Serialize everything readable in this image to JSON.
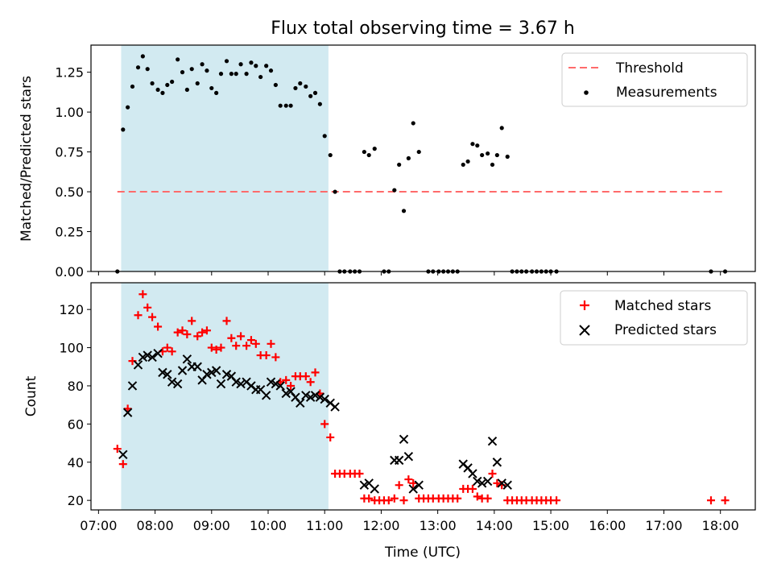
{
  "figure": {
    "title": "Flux total observing time = 3.67 h",
    "xlabel": "Time (UTC)",
    "x_ticks": [
      "07:00",
      "08:00",
      "09:00",
      "10:00",
      "11:00",
      "12:00",
      "13:00",
      "14:00",
      "15:00",
      "16:00",
      "17:00",
      "18:00"
    ]
  },
  "chart_data": [
    {
      "type": "scatter",
      "ylabel": "Matched/Predicted stars",
      "xlim": [
        "06:52",
        "18:37"
      ],
      "ylim": [
        0,
        1.42
      ],
      "y_ticks": [
        "0.00",
        "0.25",
        "0.50",
        "0.75",
        "1.00",
        "1.25"
      ],
      "legend_position": "top-right",
      "shaded_region": {
        "x": [
          "07:24",
          "11:04"
        ],
        "color": "#add8e6"
      },
      "threshold": {
        "name": "Threshold",
        "y": 0.5,
        "x": [
          "07:20",
          "18:05"
        ],
        "color": "#ff6b6b"
      },
      "series": [
        {
          "name": "Measurements",
          "color": "#000000",
          "points": [
            [
              "07:20",
              0.0
            ],
            [
              "07:26",
              0.89
            ],
            [
              "07:31",
              1.03
            ],
            [
              "07:36",
              1.16
            ],
            [
              "07:42",
              1.28
            ],
            [
              "07:47",
              1.35
            ],
            [
              "07:52",
              1.27
            ],
            [
              "07:57",
              1.18
            ],
            [
              "08:03",
              1.14
            ],
            [
              "08:08",
              1.12
            ],
            [
              "08:13",
              1.17
            ],
            [
              "08:18",
              1.19
            ],
            [
              "08:24",
              1.33
            ],
            [
              "08:29",
              1.25
            ],
            [
              "08:34",
              1.14
            ],
            [
              "08:39",
              1.27
            ],
            [
              "08:45",
              1.18
            ],
            [
              "08:50",
              1.3
            ],
            [
              "08:55",
              1.26
            ],
            [
              "09:00",
              1.15
            ],
            [
              "09:05",
              1.12
            ],
            [
              "09:10",
              1.24
            ],
            [
              "09:16",
              1.32
            ],
            [
              "09:21",
              1.24
            ],
            [
              "09:26",
              1.24
            ],
            [
              "09:31",
              1.3
            ],
            [
              "09:37",
              1.24
            ],
            [
              "09:42",
              1.31
            ],
            [
              "09:47",
              1.29
            ],
            [
              "09:52",
              1.22
            ],
            [
              "09:58",
              1.29
            ],
            [
              "10:03",
              1.26
            ],
            [
              "10:08",
              1.17
            ],
            [
              "10:13",
              1.04
            ],
            [
              "10:19",
              1.04
            ],
            [
              "10:24",
              1.04
            ],
            [
              "10:29",
              1.15
            ],
            [
              "10:34",
              1.18
            ],
            [
              "10:40",
              1.16
            ],
            [
              "10:45",
              1.1
            ],
            [
              "10:50",
              1.12
            ],
            [
              "10:55",
              1.05
            ],
            [
              "11:00",
              0.85
            ],
            [
              "11:06",
              0.73
            ],
            [
              "11:11",
              0.5
            ],
            [
              "11:16",
              0.0
            ],
            [
              "11:21",
              0.0
            ],
            [
              "11:27",
              0.0
            ],
            [
              "11:32",
              0.0
            ],
            [
              "11:37",
              0.0
            ],
            [
              "11:42",
              0.75
            ],
            [
              "11:47",
              0.73
            ],
            [
              "11:53",
              0.77
            ],
            [
              "12:03",
              0.0
            ],
            [
              "12:08",
              0.0
            ],
            [
              "12:14",
              0.51
            ],
            [
              "12:19",
              0.67
            ],
            [
              "12:24",
              0.38
            ],
            [
              "12:29",
              0.71
            ],
            [
              "12:34",
              0.93
            ],
            [
              "12:40",
              0.75
            ],
            [
              "12:50",
              0.0
            ],
            [
              "12:55",
              0.0
            ],
            [
              "13:01",
              0.0
            ],
            [
              "13:06",
              0.0
            ],
            [
              "13:11",
              0.0
            ],
            [
              "13:16",
              0.0
            ],
            [
              "13:21",
              0.0
            ],
            [
              "13:27",
              0.67
            ],
            [
              "13:32",
              0.69
            ],
            [
              "13:37",
              0.8
            ],
            [
              "13:42",
              0.79
            ],
            [
              "13:47",
              0.73
            ],
            [
              "13:53",
              0.74
            ],
            [
              "13:58",
              0.67
            ],
            [
              "14:03",
              0.73
            ],
            [
              "14:08",
              0.9
            ],
            [
              "14:14",
              0.72
            ],
            [
              "14:19",
              0.0
            ],
            [
              "14:24",
              0.0
            ],
            [
              "14:29",
              0.0
            ],
            [
              "14:34",
              0.0
            ],
            [
              "14:40",
              0.0
            ],
            [
              "14:45",
              0.0
            ],
            [
              "14:50",
              0.0
            ],
            [
              "14:55",
              0.0
            ],
            [
              "15:00",
              0.0
            ],
            [
              "15:06",
              0.0
            ],
            [
              "17:50",
              0.0
            ],
            [
              "18:05",
              0.0
            ]
          ]
        }
      ]
    },
    {
      "type": "scatter",
      "ylabel": "Count",
      "xlim": [
        "06:52",
        "18:37"
      ],
      "ylim": [
        15,
        134
      ],
      "y_ticks": [
        "20",
        "40",
        "60",
        "80",
        "100",
        "120"
      ],
      "legend_position": "top-right",
      "shaded_region": {
        "x": [
          "07:24",
          "11:04"
        ],
        "color": "#add8e6"
      },
      "series": [
        {
          "name": "Matched stars",
          "color": "#ff0000",
          "marker": "plus",
          "points": [
            [
              "07:20",
              47
            ],
            [
              "07:26",
              39
            ],
            [
              "07:31",
              68
            ],
            [
              "07:36",
              93
            ],
            [
              "07:42",
              117
            ],
            [
              "07:47",
              128
            ],
            [
              "07:52",
              121
            ],
            [
              "07:57",
              116
            ],
            [
              "08:03",
              111
            ],
            [
              "08:08",
              98
            ],
            [
              "08:13",
              100
            ],
            [
              "08:18",
              98
            ],
            [
              "08:24",
              108
            ],
            [
              "08:29",
              109
            ],
            [
              "08:34",
              107
            ],
            [
              "08:39",
              114
            ],
            [
              "08:45",
              106
            ],
            [
              "08:50",
              108
            ],
            [
              "08:55",
              109
            ],
            [
              "09:00",
              100
            ],
            [
              "09:05",
              99
            ],
            [
              "09:10",
              100
            ],
            [
              "09:16",
              114
            ],
            [
              "09:21",
              105
            ],
            [
              "09:26",
              101
            ],
            [
              "09:31",
              106
            ],
            [
              "09:37",
              101
            ],
            [
              "09:42",
              104
            ],
            [
              "09:47",
              102
            ],
            [
              "09:52",
              96
            ],
            [
              "09:58",
              96
            ],
            [
              "10:03",
              102
            ],
            [
              "10:08",
              95
            ],
            [
              "10:13",
              82
            ],
            [
              "10:19",
              83
            ],
            [
              "10:24",
              80
            ],
            [
              "10:29",
              85
            ],
            [
              "10:34",
              85
            ],
            [
              "10:40",
              85
            ],
            [
              "10:45",
              82
            ],
            [
              "10:50",
              87
            ],
            [
              "10:55",
              76
            ],
            [
              "11:00",
              60
            ],
            [
              "11:06",
              53
            ],
            [
              "11:11",
              34
            ],
            [
              "11:16",
              34
            ],
            [
              "11:21",
              34
            ],
            [
              "11:27",
              34
            ],
            [
              "11:32",
              34
            ],
            [
              "11:37",
              34
            ],
            [
              "11:42",
              21
            ],
            [
              "11:47",
              21
            ],
            [
              "11:53",
              20
            ],
            [
              "11:58",
              20
            ],
            [
              "12:03",
              20
            ],
            [
              "12:08",
              20
            ],
            [
              "12:14",
              21
            ],
            [
              "12:19",
              28
            ],
            [
              "12:24",
              20
            ],
            [
              "12:29",
              31
            ],
            [
              "12:34",
              29
            ],
            [
              "12:40",
              21
            ],
            [
              "12:45",
              21
            ],
            [
              "12:50",
              21
            ],
            [
              "12:55",
              21
            ],
            [
              "13:01",
              21
            ],
            [
              "13:06",
              21
            ],
            [
              "13:11",
              21
            ],
            [
              "13:16",
              21
            ],
            [
              "13:21",
              21
            ],
            [
              "13:27",
              26
            ],
            [
              "13:32",
              26
            ],
            [
              "13:37",
              26
            ],
            [
              "13:42",
              22
            ],
            [
              "13:47",
              21
            ],
            [
              "13:53",
              21
            ],
            [
              "13:58",
              34
            ],
            [
              "14:03",
              29
            ],
            [
              "14:08",
              28
            ],
            [
              "14:14",
              20
            ],
            [
              "14:19",
              20
            ],
            [
              "14:24",
              20
            ],
            [
              "14:29",
              20
            ],
            [
              "14:34",
              20
            ],
            [
              "14:40",
              20
            ],
            [
              "14:45",
              20
            ],
            [
              "14:50",
              20
            ],
            [
              "14:55",
              20
            ],
            [
              "15:00",
              20
            ],
            [
              "15:06",
              20
            ],
            [
              "17:50",
              20
            ],
            [
              "18:05",
              20
            ]
          ]
        },
        {
          "name": "Predicted stars",
          "color": "#000000",
          "marker": "x",
          "points": [
            [
              "07:26",
              44
            ],
            [
              "07:31",
              66
            ],
            [
              "07:36",
              80
            ],
            [
              "07:42",
              91
            ],
            [
              "07:47",
              95
            ],
            [
              "07:52",
              96
            ],
            [
              "07:57",
              95
            ],
            [
              "08:03",
              97
            ],
            [
              "08:08",
              87
            ],
            [
              "08:13",
              86
            ],
            [
              "08:18",
              82
            ],
            [
              "08:24",
              81
            ],
            [
              "08:29",
              88
            ],
            [
              "08:34",
              94
            ],
            [
              "08:39",
              90
            ],
            [
              "08:45",
              90
            ],
            [
              "08:50",
              83
            ],
            [
              "08:55",
              86
            ],
            [
              "09:00",
              87
            ],
            [
              "09:05",
              88
            ],
            [
              "09:10",
              81
            ],
            [
              "09:16",
              86
            ],
            [
              "09:21",
              85
            ],
            [
              "09:26",
              82
            ],
            [
              "09:31",
              81
            ],
            [
              "09:37",
              82
            ],
            [
              "09:42",
              80
            ],
            [
              "09:47",
              78
            ],
            [
              "09:52",
              78
            ],
            [
              "09:58",
              75
            ],
            [
              "10:03",
              82
            ],
            [
              "10:08",
              81
            ],
            [
              "10:13",
              80
            ],
            [
              "10:19",
              76
            ],
            [
              "10:24",
              77
            ],
            [
              "10:29",
              74
            ],
            [
              "10:34",
              71
            ],
            [
              "10:40",
              75
            ],
            [
              "10:45",
              74
            ],
            [
              "10:50",
              75
            ],
            [
              "10:55",
              74
            ],
            [
              "11:00",
              73
            ],
            [
              "11:06",
              71
            ],
            [
              "11:11",
              69
            ],
            [
              "11:42",
              28
            ],
            [
              "11:47",
              29
            ],
            [
              "11:53",
              26
            ],
            [
              "12:14",
              41
            ],
            [
              "12:19",
              41
            ],
            [
              "12:24",
              52
            ],
            [
              "12:29",
              43
            ],
            [
              "12:34",
              26
            ],
            [
              "12:40",
              28
            ],
            [
              "13:27",
              39
            ],
            [
              "13:32",
              37
            ],
            [
              "13:37",
              34
            ],
            [
              "13:42",
              30
            ],
            [
              "13:47",
              29
            ],
            [
              "13:53",
              30
            ],
            [
              "13:58",
              51
            ],
            [
              "14:03",
              40
            ],
            [
              "14:08",
              29
            ],
            [
              "14:14",
              28
            ]
          ]
        }
      ]
    }
  ]
}
